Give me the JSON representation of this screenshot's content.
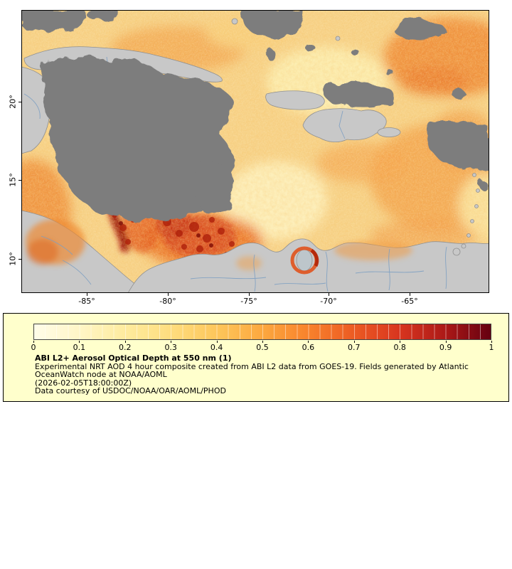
{
  "figure": {
    "map": {
      "x_tick_labels": [
        "-85°",
        "-80°",
        "-75°",
        "-70°",
        "-65°"
      ],
      "y_tick_labels": [
        "20°",
        "15°",
        "10°"
      ]
    },
    "legend": {
      "colorbar": {
        "min": 0,
        "max": 1,
        "tick_labels": [
          "0",
          "0.1",
          "0.2",
          "0.3",
          "0.4",
          "0.5",
          "0.6",
          "0.7",
          "0.8",
          "0.9",
          "1"
        ],
        "stops": [
          "#fffce9",
          "#fff6c6",
          "#feeb9e",
          "#fedd7e",
          "#fdc65b",
          "#fca83f",
          "#f8822c",
          "#ec5b23",
          "#d8351f",
          "#ad1917",
          "#650010"
        ]
      },
      "title": "ABI L2+ Aerosol Optical Depth at 550 nm (1)",
      "description_line1": "Experimental NRT AOD 4 hour composite created from ABI L2 data from GOES-19. Fields generated by Atlantic",
      "description_line2": "OceanWatch node at NOAA/AOML",
      "timestamp": "(2026-02-05T18:00:00Z)",
      "credit": "Data courtesy of USDOC/NOAA/OAR/AOML/PHOD"
    },
    "colors": {
      "legend_background": "#ffffcc",
      "cloud_gray": "#7d7d7d",
      "land_gray": "#c8c8c8",
      "ocean_base": "#f7d287",
      "high_aod_red": "#a81207",
      "border_blue": "#7d9fc2"
    }
  }
}
